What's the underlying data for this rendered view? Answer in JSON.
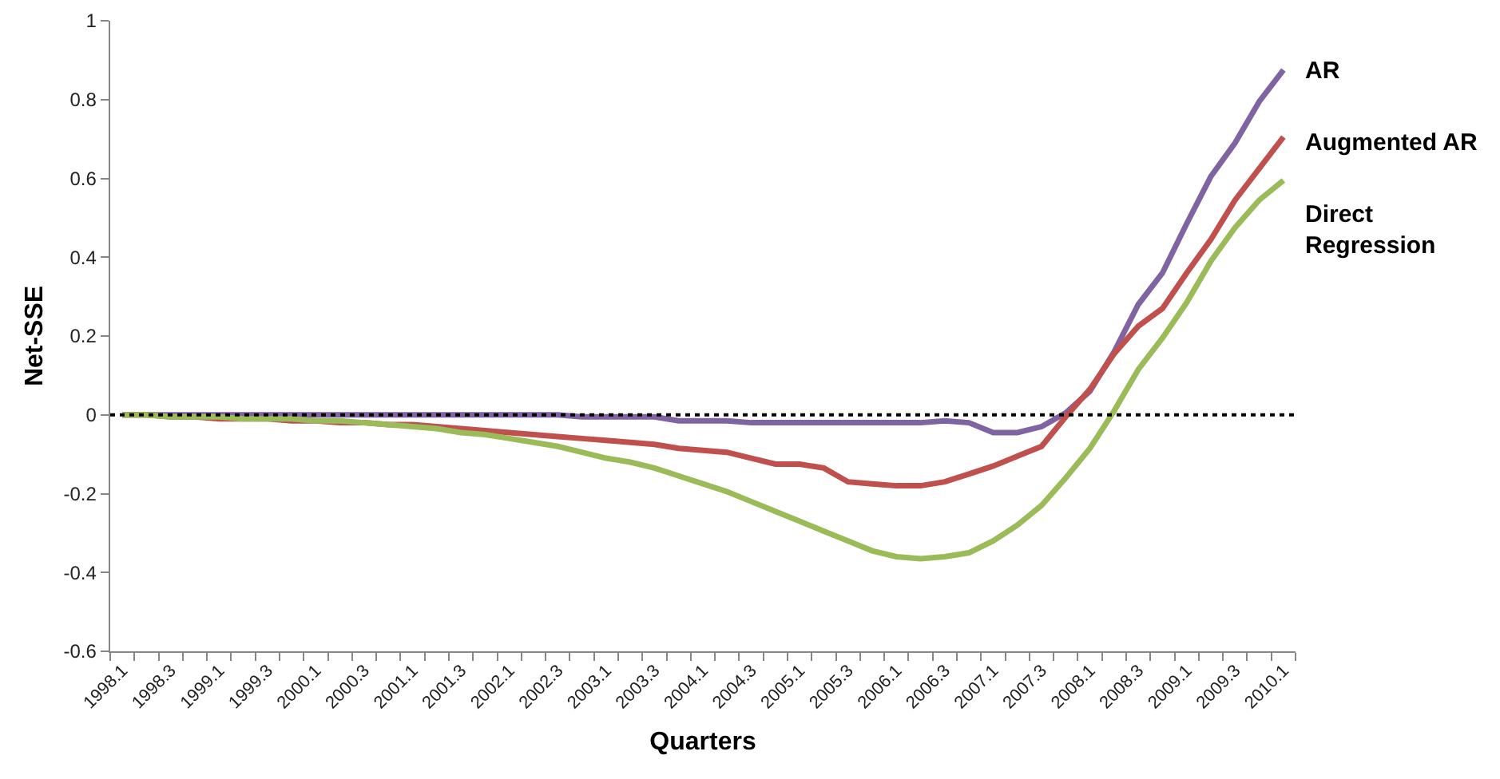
{
  "chart_data": {
    "type": "line",
    "xlabel": "Quarters",
    "ylabel": "Net-SSE",
    "categories": [
      "1998.1",
      null,
      "1998.3",
      null,
      "1999.1",
      null,
      "1999.3",
      null,
      "2000.1",
      null,
      "2000.3",
      null,
      "2001.1",
      null,
      "2001.3",
      null,
      "2002.1",
      null,
      "2002.3",
      null,
      "2003.1",
      null,
      "2003.3",
      null,
      "2004.1",
      null,
      "2004.3",
      null,
      "2005.1",
      null,
      "2005.3",
      null,
      "2006.1",
      null,
      "2006.3",
      null,
      "2007.1",
      null,
      "2007.3",
      null,
      "2008.1",
      null,
      "2008.3",
      null,
      "2009.1",
      null,
      "2009.3",
      null,
      "2010.1"
    ],
    "series": [
      {
        "name": "AR",
        "color": "#8064a2",
        "values": [
          0,
          0,
          0,
          0,
          0,
          0,
          0,
          0,
          0,
          0,
          0,
          0,
          0,
          0,
          0,
          0,
          0,
          0,
          0,
          -0.005,
          -0.005,
          -0.005,
          -0.005,
          -0.015,
          -0.015,
          -0.015,
          -0.02,
          -0.02,
          -0.02,
          -0.02,
          -0.02,
          -0.02,
          -0.02,
          -0.02,
          -0.015,
          -0.02,
          -0.045,
          -0.045,
          -0.03,
          0.005,
          0.06,
          0.16,
          0.28,
          0.36,
          0.485,
          0.605,
          0.69,
          0.795,
          0.875
        ]
      },
      {
        "name": "Augmented AR",
        "color": "#c0504d",
        "values": [
          0,
          0,
          -0.005,
          -0.005,
          -0.01,
          -0.01,
          -0.01,
          -0.015,
          -0.015,
          -0.02,
          -0.02,
          -0.025,
          -0.025,
          -0.03,
          -0.035,
          -0.04,
          -0.045,
          -0.05,
          -0.055,
          -0.06,
          -0.065,
          -0.07,
          -0.075,
          -0.085,
          -0.09,
          -0.095,
          -0.11,
          -0.125,
          -0.125,
          -0.135,
          -0.17,
          -0.175,
          -0.18,
          -0.18,
          -0.17,
          -0.15,
          -0.13,
          -0.105,
          -0.08,
          -0.005,
          0.065,
          0.155,
          0.225,
          0.27,
          0.36,
          0.445,
          0.545,
          0.625,
          0.705
        ]
      },
      {
        "name": "Direct Regression",
        "color": "#9bbb59",
        "values": [
          0,
          0,
          -0.005,
          -0.005,
          -0.005,
          -0.01,
          -0.01,
          -0.01,
          -0.015,
          -0.015,
          -0.02,
          -0.025,
          -0.03,
          -0.035,
          -0.045,
          -0.05,
          -0.06,
          -0.07,
          -0.08,
          -0.095,
          -0.11,
          -0.12,
          -0.135,
          -0.155,
          -0.175,
          -0.195,
          -0.22,
          -0.245,
          -0.27,
          -0.295,
          -0.32,
          -0.345,
          -0.36,
          -0.365,
          -0.36,
          -0.35,
          -0.32,
          -0.28,
          -0.23,
          -0.16,
          -0.085,
          0.01,
          0.115,
          0.195,
          0.285,
          0.39,
          0.475,
          0.545,
          0.595
        ]
      }
    ],
    "ylim": [
      -0.6,
      1
    ],
    "yticks": [
      -0.6,
      -0.4,
      -0.2,
      0,
      0.2,
      0.4,
      0.6,
      0.8,
      1
    ],
    "grid": false,
    "legend": false,
    "marker": "none",
    "line_style": "solid",
    "ref_lines": [
      {
        "axis": "y",
        "value": 0,
        "color": "#000000",
        "line_style": "dotted"
      }
    ]
  }
}
